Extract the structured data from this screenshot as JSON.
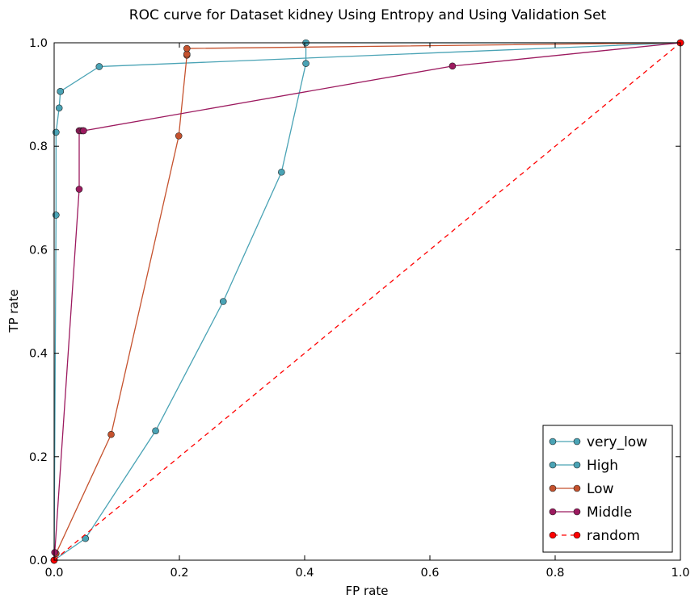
{
  "chart_data": {
    "type": "line",
    "title": "ROC curve for Dataset kidney Using Entropy and Using Validation Set",
    "xlabel": "FP rate",
    "ylabel": "TP rate",
    "xlim": [
      0,
      1
    ],
    "ylim": [
      0,
      1
    ],
    "x_ticks": [
      "0.0",
      "0.2",
      "0.4",
      "0.6",
      "0.8",
      "1.0"
    ],
    "y_ticks": [
      "0.0",
      "0.2",
      "0.4",
      "0.6",
      "0.8",
      "1.0"
    ],
    "grid": false,
    "legend_position": "lower-right",
    "series": [
      {
        "name": "very_low",
        "color": "#4aa3b5",
        "dashed": false,
        "points": [
          [
            0,
            0
          ],
          [
            0.05,
            0.042
          ],
          [
            0.162,
            0.25
          ],
          [
            0.27,
            0.5
          ],
          [
            0.363,
            0.75
          ],
          [
            0.402,
            0.96
          ],
          [
            0.402,
            1.0
          ],
          [
            1.0,
            1.0
          ]
        ]
      },
      {
        "name": "High",
        "color": "#4aa3b5",
        "dashed": false,
        "points": [
          [
            0,
            0
          ],
          [
            0.003,
            0.667
          ],
          [
            0.003,
            0.827
          ],
          [
            0.008,
            0.874
          ],
          [
            0.01,
            0.906
          ],
          [
            0.01,
            0.906
          ],
          [
            0.072,
            0.954
          ],
          [
            1.0,
            1.0
          ]
        ]
      },
      {
        "name": "Low",
        "color": "#c5522e",
        "dashed": false,
        "points": [
          [
            0,
            0
          ],
          [
            0.003,
            0.013
          ],
          [
            0.091,
            0.243
          ],
          [
            0.199,
            0.82
          ],
          [
            0.212,
            0.976
          ],
          [
            0.212,
            0.978
          ],
          [
            0.212,
            0.989
          ],
          [
            1.0,
            1.0
          ]
        ]
      },
      {
        "name": "Middle",
        "color": "#9c1a5f",
        "dashed": false,
        "points": [
          [
            0,
            0
          ],
          [
            0.001,
            0.015
          ],
          [
            0.04,
            0.717
          ],
          [
            0.04,
            0.83
          ],
          [
            0.043,
            0.83
          ],
          [
            0.046,
            0.83
          ],
          [
            0.047,
            0.83
          ],
          [
            0.636,
            0.955
          ],
          [
            1.0,
            1.0
          ]
        ]
      },
      {
        "name": "random",
        "color": "#ff0000",
        "dashed": true,
        "points": [
          [
            0,
            0
          ],
          [
            1,
            1
          ]
        ]
      }
    ]
  }
}
